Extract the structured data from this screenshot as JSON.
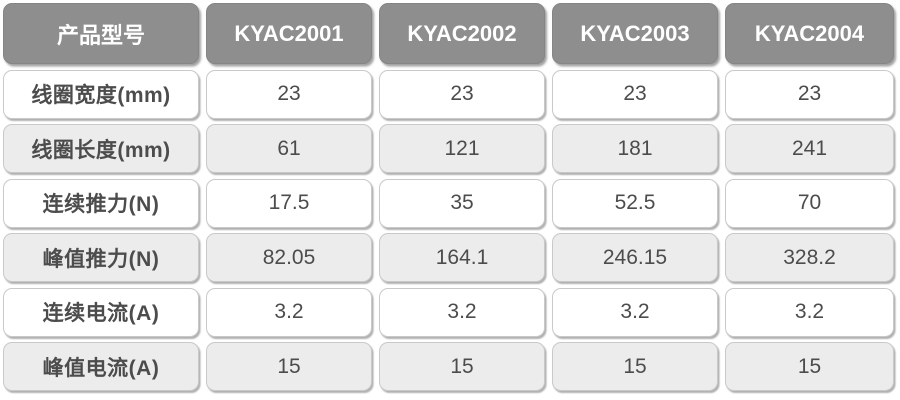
{
  "chart_data": {
    "type": "table",
    "header": {
      "label": "产品型号",
      "models": [
        "KYAC2001",
        "KYAC2002",
        "KYAC2003",
        "KYAC2004"
      ]
    },
    "rows": [
      {
        "label": "线圈宽度(mm)",
        "values": [
          "23",
          "23",
          "23",
          "23"
        ]
      },
      {
        "label": "线圈长度(mm)",
        "values": [
          "61",
          "121",
          "181",
          "241"
        ]
      },
      {
        "label": "连续推力(N)",
        "values": [
          "17.5",
          "35",
          "52.5",
          "70"
        ]
      },
      {
        "label": "峰值推力(N)",
        "values": [
          "82.05",
          "164.1",
          "246.15",
          "328.2"
        ]
      },
      {
        "label": "连续电流(A)",
        "values": [
          "3.2",
          "3.2",
          "3.2",
          "3.2"
        ]
      },
      {
        "label": "峰值电流(A)",
        "values": [
          "15",
          "15",
          "15",
          "15"
        ]
      }
    ]
  },
  "colors": {
    "header_bg": "#8e8e8e",
    "header_text": "#ffffff",
    "row_bg": "#ffffff",
    "row_alt_bg": "#ececec",
    "cell_border": "#c9c9c9",
    "body_text": "#4c4c4c"
  }
}
